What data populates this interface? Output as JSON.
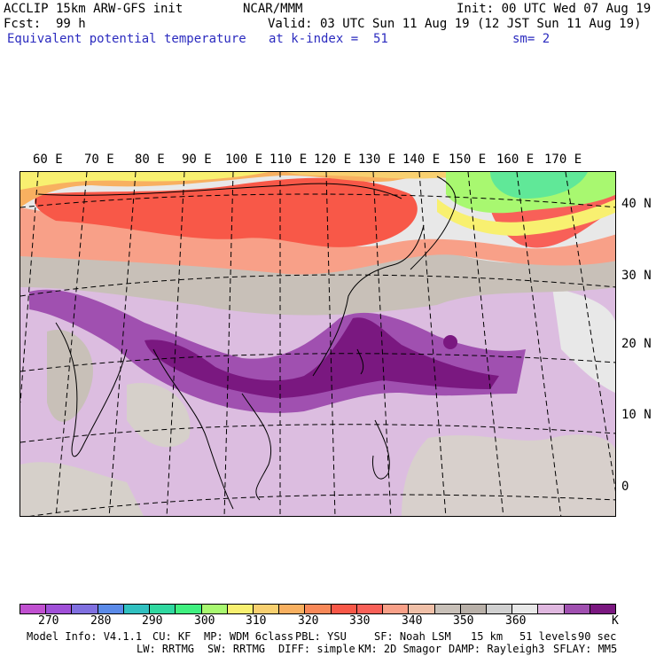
{
  "header": {
    "model": "ACCLIP 15km ARW-GFS init",
    "org": "NCAR/MMM",
    "init": "Init: 00 UTC Wed 07 Aug 19",
    "fcst": "Fcst:  99 h",
    "valid": "Valid: 03 UTC Sun 11 Aug 19 (12 JST Sun 11 Aug 19)",
    "field": "Equivalent potential temperature",
    "level": "at k-index =  51",
    "smooth": "sm= 2"
  },
  "map": {
    "lon_labels": [
      "60 E",
      "70 E",
      "80 E",
      "90 E",
      "100 E",
      "110 E",
      "120 E",
      "130 E",
      "140 E",
      "150 E",
      "160 E",
      "170 E"
    ],
    "lat_labels": [
      "40 N",
      "30 N",
      "20 N",
      "10 N",
      "0"
    ]
  },
  "colorbar": {
    "colors": [
      "#c050d0",
      "#a050d8",
      "#8070e0",
      "#5a8ae8",
      "#30c0c0",
      "#30d8a0",
      "#40f080",
      "#a8f870",
      "#f8f070",
      "#f8d070",
      "#f8b060",
      "#f88858",
      "#f85848",
      "#f86058",
      "#f8a088",
      "#f0c0a8",
      "#c8c0b8",
      "#b8b0a8",
      "#d0d0d0",
      "#e8e8e8",
      "#e0b8e0",
      "#a050b0",
      "#7a1880"
    ],
    "tick_labels": [
      "270",
      "280",
      "290",
      "300",
      "310",
      "320",
      "330",
      "340",
      "350",
      "360"
    ],
    "unit": "K"
  },
  "footer": {
    "line1": [
      "Model Info: V4.1.1",
      "CU: KF",
      "MP: WDM 6class",
      "PBL: YSU",
      "SF: Noah LSM",
      "15 km",
      "51 levels",
      "90 sec"
    ],
    "line2": [
      "LW: RRTMG",
      "SW: RRTMG",
      "DIFF: simple",
      "KM: 2D Smagor",
      "DAMP: Rayleigh3",
      "SFLAY: MM5"
    ]
  }
}
